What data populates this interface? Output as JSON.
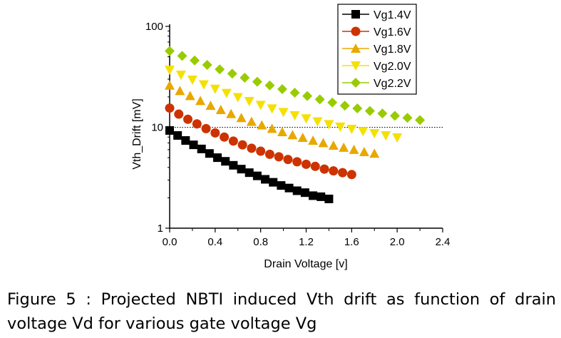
{
  "figure": {
    "caption_line1": "Figure 5 : Projected NBTI induced Vth drift as function of drain",
    "caption_line2": "voltage Vd for various gate voltage Vg"
  },
  "chart_data": {
    "type": "scatter",
    "title": "",
    "xlabel": "Drain Voltage [v]",
    "ylabel": "Vth_Drift [mV]",
    "xlim": [
      0.0,
      2.4
    ],
    "ylim": [
      1,
      100
    ],
    "yscale": "log",
    "xticks": [
      "0.0",
      "0.4",
      "0.8",
      "1.2",
      "1.6",
      "2.0",
      "2.4"
    ],
    "yticks": [
      "1",
      "10",
      "100"
    ],
    "grid": false,
    "reference_line": {
      "y": 10,
      "style": "dotted"
    },
    "legend_position": "top-right",
    "series": [
      {
        "name": "Vg1.4V",
        "color": "#000000",
        "marker": "square",
        "x": [
          0.0,
          0.07,
          0.14,
          0.21,
          0.28,
          0.35,
          0.42,
          0.49,
          0.56,
          0.63,
          0.7,
          0.77,
          0.84,
          0.91,
          0.98,
          1.05,
          1.12,
          1.19,
          1.26,
          1.33,
          1.4
        ],
        "y": [
          9.3,
          8.3,
          7.4,
          6.7,
          6.1,
          5.5,
          5.0,
          4.6,
          4.2,
          3.85,
          3.55,
          3.3,
          3.05,
          2.85,
          2.65,
          2.5,
          2.35,
          2.25,
          2.1,
          2.05,
          1.95
        ]
      },
      {
        "name": "Vg1.6V",
        "color": "#cc3300",
        "marker": "circle",
        "x": [
          0.0,
          0.08,
          0.16,
          0.24,
          0.32,
          0.4,
          0.48,
          0.56,
          0.64,
          0.72,
          0.8,
          0.88,
          0.96,
          1.04,
          1.12,
          1.2,
          1.28,
          1.36,
          1.44,
          1.52,
          1.6
        ],
        "y": [
          15.5,
          13.5,
          12.0,
          10.8,
          9.7,
          8.8,
          8.0,
          7.3,
          6.7,
          6.2,
          5.8,
          5.4,
          5.1,
          4.8,
          4.55,
          4.3,
          4.1,
          3.85,
          3.7,
          3.55,
          3.4
        ]
      },
      {
        "name": "Vg1.8V",
        "color": "#e8a800",
        "marker": "triangle-up",
        "x": [
          0.0,
          0.09,
          0.18,
          0.27,
          0.36,
          0.45,
          0.54,
          0.63,
          0.72,
          0.81,
          0.9,
          0.99,
          1.08,
          1.17,
          1.26,
          1.35,
          1.44,
          1.53,
          1.62,
          1.71,
          1.8
        ],
        "y": [
          26.0,
          23.0,
          20.5,
          18.3,
          16.4,
          14.9,
          13.6,
          12.4,
          11.4,
          10.5,
          9.7,
          9.0,
          8.4,
          7.9,
          7.4,
          7.0,
          6.6,
          6.3,
          6.0,
          5.7,
          5.5
        ]
      },
      {
        "name": "Vg2.0V",
        "color": "#f5e000",
        "marker": "triangle-down",
        "x": [
          0.0,
          0.1,
          0.2,
          0.3,
          0.4,
          0.5,
          0.6,
          0.7,
          0.8,
          0.9,
          1.0,
          1.1,
          1.2,
          1.3,
          1.4,
          1.5,
          1.6,
          1.7,
          1.8,
          1.9,
          2.0
        ],
        "y": [
          37.0,
          33.0,
          29.5,
          26.5,
          24.0,
          21.8,
          19.8,
          18.1,
          16.6,
          15.3,
          14.1,
          13.1,
          12.2,
          11.4,
          10.7,
          10.1,
          9.6,
          9.1,
          8.7,
          8.3,
          7.9
        ]
      },
      {
        "name": "Vg2.2V",
        "color": "#99cc00",
        "marker": "diamond",
        "x": [
          0.0,
          0.11,
          0.22,
          0.33,
          0.44,
          0.55,
          0.66,
          0.77,
          0.88,
          0.99,
          1.1,
          1.21,
          1.32,
          1.43,
          1.54,
          1.65,
          1.76,
          1.87,
          1.98,
          2.09,
          2.2
        ],
        "y": [
          57.0,
          51.0,
          46.0,
          41.5,
          37.5,
          34.0,
          31.0,
          28.3,
          26.0,
          23.9,
          22.0,
          20.4,
          18.9,
          17.6,
          16.4,
          15.4,
          14.5,
          13.7,
          13.0,
          12.4,
          11.8
        ]
      }
    ]
  }
}
